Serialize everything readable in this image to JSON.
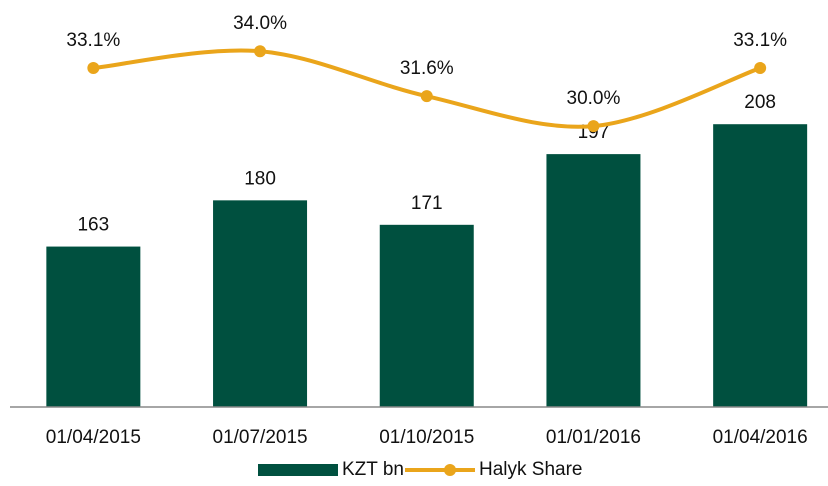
{
  "chart_data": {
    "type": "bar",
    "categories": [
      "01/04/2015",
      "01/07/2015",
      "01/10/2015",
      "01/01/2016",
      "01/04/2016"
    ],
    "series": [
      {
        "name": "KZT bn",
        "type": "bar",
        "color": "#00503f",
        "values": [
          163,
          180,
          171,
          197,
          208
        ]
      },
      {
        "name": "Halyk Share",
        "type": "line",
        "axis": "y2",
        "color": "#eaa51b",
        "values": [
          33.1,
          34.0,
          31.6,
          30.0,
          33.1
        ],
        "value_labels": [
          "33.1%",
          "34.0%",
          "31.6%",
          "30.0%",
          "33.1%"
        ]
      }
    ],
    "ylim": [
      104,
      250
    ],
    "y2lim": [
      15,
      36.2
    ],
    "legend": "bottom"
  }
}
